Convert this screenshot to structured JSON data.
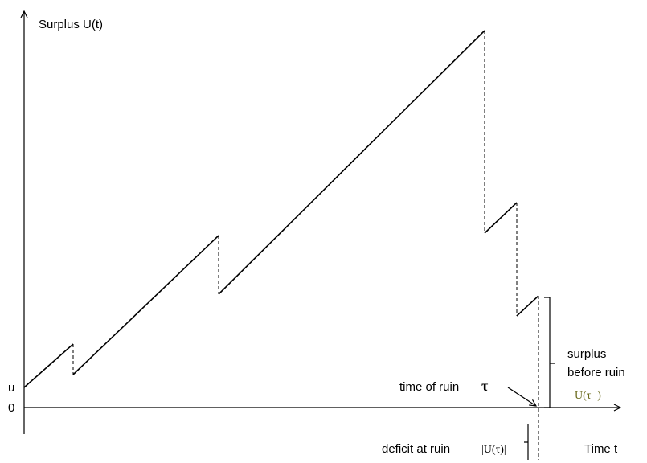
{
  "y_axis_label": "Surplus U(t)",
  "x_axis_label": "Time t",
  "y_tick_u": "u",
  "y_tick_zero": "0",
  "time_of_ruin_label": "time of ruin",
  "tau_symbol": "τ",
  "surplus_before_ruin_line1": "surplus",
  "surplus_before_ruin_line2": "before ruin",
  "surplus_before_ruin_symbol": "U(τ−)",
  "deficit_label": "deficit at ruin",
  "deficit_symbol": "|U(τ)|"
}
